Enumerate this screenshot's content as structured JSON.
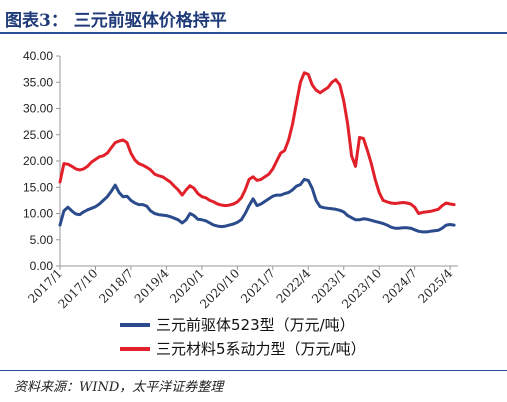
{
  "header": {
    "title": "图表3：  三元前驱体价格持平"
  },
  "footer": {
    "source": "资料来源：WIND，太平洋证券整理"
  },
  "colors": {
    "title": "#1f3a78",
    "series_blue": "#2b4b8c",
    "series_red": "#e2202a",
    "rule": "#2a4f9a"
  },
  "chart_data": {
    "type": "line",
    "title": "",
    "xlabel": "",
    "ylabel": "",
    "ylim": [
      0,
      40
    ],
    "yticks": [
      "0.00",
      "5.00",
      "10.00",
      "15.00",
      "20.00",
      "25.00",
      "30.00",
      "35.00",
      "40.00"
    ],
    "xlim": [
      "2017-01",
      "2025-06"
    ],
    "xticks": [
      "2017/1",
      "2017/10",
      "2018/7",
      "2019/4",
      "2020/1",
      "2020/10",
      "2021/7",
      "2022/4",
      "2023/1",
      "2023/10",
      "2024/7",
      "2025/4"
    ],
    "grid": false,
    "legend_position": "bottom",
    "series": [
      {
        "name": "三元前驱体523型（万元/吨）",
        "color": "#2b4b8c",
        "points": [
          [
            "2017-01",
            7.8
          ],
          [
            "2017-02",
            10.5
          ],
          [
            "2017-03",
            11.2
          ],
          [
            "2017-04",
            10.5
          ],
          [
            "2017-05",
            9.9
          ],
          [
            "2017-06",
            9.8
          ],
          [
            "2017-07",
            10.3
          ],
          [
            "2017-08",
            10.7
          ],
          [
            "2017-09",
            11.0
          ],
          [
            "2017-10",
            11.3
          ],
          [
            "2017-11",
            11.8
          ],
          [
            "2017-12",
            12.5
          ],
          [
            "2018-01",
            13.2
          ],
          [
            "2018-02",
            14.2
          ],
          [
            "2018-03",
            15.4
          ],
          [
            "2018-04",
            14.0
          ],
          [
            "2018-05",
            13.2
          ],
          [
            "2018-06",
            13.3
          ],
          [
            "2018-07",
            12.5
          ],
          [
            "2018-08",
            12.0
          ],
          [
            "2018-09",
            11.7
          ],
          [
            "2018-10",
            11.7
          ],
          [
            "2018-11",
            11.4
          ],
          [
            "2018-12",
            10.5
          ],
          [
            "2019-01",
            10.0
          ],
          [
            "2019-02",
            9.8
          ],
          [
            "2019-03",
            9.7
          ],
          [
            "2019-04",
            9.6
          ],
          [
            "2019-05",
            9.4
          ],
          [
            "2019-06",
            9.1
          ],
          [
            "2019-07",
            8.8
          ],
          [
            "2019-08",
            8.2
          ],
          [
            "2019-09",
            8.8
          ],
          [
            "2019-10",
            10.0
          ],
          [
            "2019-11",
            9.6
          ],
          [
            "2019-12",
            8.9
          ],
          [
            "2020-01",
            8.8
          ],
          [
            "2020-02",
            8.6
          ],
          [
            "2020-03",
            8.2
          ],
          [
            "2020-04",
            7.8
          ],
          [
            "2020-05",
            7.6
          ],
          [
            "2020-06",
            7.5
          ],
          [
            "2020-07",
            7.6
          ],
          [
            "2020-08",
            7.8
          ],
          [
            "2020-09",
            8.0
          ],
          [
            "2020-10",
            8.3
          ],
          [
            "2020-11",
            8.8
          ],
          [
            "2020-12",
            10.0
          ],
          [
            "2021-01",
            11.5
          ],
          [
            "2021-02",
            12.8
          ],
          [
            "2021-03",
            11.5
          ],
          [
            "2021-04",
            11.8
          ],
          [
            "2021-05",
            12.3
          ],
          [
            "2021-06",
            12.8
          ],
          [
            "2021-07",
            13.3
          ],
          [
            "2021-08",
            13.5
          ],
          [
            "2021-09",
            13.5
          ],
          [
            "2021-10",
            13.8
          ],
          [
            "2021-11",
            14.0
          ],
          [
            "2021-12",
            14.5
          ],
          [
            "2022-01",
            15.2
          ],
          [
            "2022-02",
            15.5
          ],
          [
            "2022-03",
            16.5
          ],
          [
            "2022-04",
            16.3
          ],
          [
            "2022-05",
            14.8
          ],
          [
            "2022-06",
            12.5
          ],
          [
            "2022-07",
            11.3
          ],
          [
            "2022-08",
            11.1
          ],
          [
            "2022-09",
            11.0
          ],
          [
            "2022-10",
            10.9
          ],
          [
            "2022-11",
            10.8
          ],
          [
            "2022-12",
            10.6
          ],
          [
            "2023-01",
            10.3
          ],
          [
            "2023-02",
            9.6
          ],
          [
            "2023-03",
            9.2
          ],
          [
            "2023-04",
            8.8
          ],
          [
            "2023-05",
            8.8
          ],
          [
            "2023-06",
            9.0
          ],
          [
            "2023-07",
            8.9
          ],
          [
            "2023-08",
            8.7
          ],
          [
            "2023-09",
            8.5
          ],
          [
            "2023-10",
            8.3
          ],
          [
            "2023-11",
            8.1
          ],
          [
            "2023-12",
            7.8
          ],
          [
            "2024-01",
            7.4
          ],
          [
            "2024-02",
            7.2
          ],
          [
            "2024-03",
            7.2
          ],
          [
            "2024-04",
            7.3
          ],
          [
            "2024-05",
            7.3
          ],
          [
            "2024-06",
            7.2
          ],
          [
            "2024-07",
            6.9
          ],
          [
            "2024-08",
            6.6
          ],
          [
            "2024-09",
            6.5
          ],
          [
            "2024-10",
            6.5
          ],
          [
            "2024-11",
            6.6
          ],
          [
            "2024-12",
            6.7
          ],
          [
            "2025-01",
            6.8
          ],
          [
            "2025-02",
            7.2
          ],
          [
            "2025-03",
            7.8
          ],
          [
            "2025-04",
            7.9
          ],
          [
            "2025-05",
            7.8
          ]
        ]
      },
      {
        "name": "三元材料5系动力型（万元/吨）",
        "color": "#e2202a",
        "points": [
          [
            "2017-01",
            16.0
          ],
          [
            "2017-02",
            19.5
          ],
          [
            "2017-03",
            19.4
          ],
          [
            "2017-04",
            19.0
          ],
          [
            "2017-05",
            18.5
          ],
          [
            "2017-06",
            18.3
          ],
          [
            "2017-07",
            18.5
          ],
          [
            "2017-08",
            19.0
          ],
          [
            "2017-09",
            19.8
          ],
          [
            "2017-10",
            20.3
          ],
          [
            "2017-11",
            20.8
          ],
          [
            "2017-12",
            21.0
          ],
          [
            "2018-01",
            21.5
          ],
          [
            "2018-02",
            22.5
          ],
          [
            "2018-03",
            23.5
          ],
          [
            "2018-04",
            23.8
          ],
          [
            "2018-05",
            24.0
          ],
          [
            "2018-06",
            23.5
          ],
          [
            "2018-07",
            21.5
          ],
          [
            "2018-08",
            20.2
          ],
          [
            "2018-09",
            19.5
          ],
          [
            "2018-10",
            19.2
          ],
          [
            "2018-11",
            18.8
          ],
          [
            "2018-12",
            18.3
          ],
          [
            "2019-01",
            17.5
          ],
          [
            "2019-02",
            17.2
          ],
          [
            "2019-03",
            17.0
          ],
          [
            "2019-04",
            16.5
          ],
          [
            "2019-05",
            16.0
          ],
          [
            "2019-06",
            15.2
          ],
          [
            "2019-07",
            14.5
          ],
          [
            "2019-08",
            13.5
          ],
          [
            "2019-09",
            14.5
          ],
          [
            "2019-10",
            15.3
          ],
          [
            "2019-11",
            14.8
          ],
          [
            "2019-12",
            13.8
          ],
          [
            "2020-01",
            13.2
          ],
          [
            "2020-02",
            13.0
          ],
          [
            "2020-03",
            12.5
          ],
          [
            "2020-04",
            12.2
          ],
          [
            "2020-05",
            11.8
          ],
          [
            "2020-06",
            11.6
          ],
          [
            "2020-07",
            11.5
          ],
          [
            "2020-08",
            11.6
          ],
          [
            "2020-09",
            11.8
          ],
          [
            "2020-10",
            12.2
          ],
          [
            "2020-11",
            13.0
          ],
          [
            "2020-12",
            14.5
          ],
          [
            "2021-01",
            16.5
          ],
          [
            "2021-02",
            17.0
          ],
          [
            "2021-03",
            16.3
          ],
          [
            "2021-04",
            16.5
          ],
          [
            "2021-05",
            17.0
          ],
          [
            "2021-06",
            17.5
          ],
          [
            "2021-07",
            18.5
          ],
          [
            "2021-08",
            20.0
          ],
          [
            "2021-09",
            21.5
          ],
          [
            "2021-10",
            22.0
          ],
          [
            "2021-11",
            24.0
          ],
          [
            "2021-12",
            27.0
          ],
          [
            "2022-01",
            31.0
          ],
          [
            "2022-02",
            35.0
          ],
          [
            "2022-03",
            36.8
          ],
          [
            "2022-04",
            36.5
          ],
          [
            "2022-05",
            34.5
          ],
          [
            "2022-06",
            33.5
          ],
          [
            "2022-07",
            33.0
          ],
          [
            "2022-08",
            33.5
          ],
          [
            "2022-09",
            34.0
          ],
          [
            "2022-10",
            35.0
          ],
          [
            "2022-11",
            35.5
          ],
          [
            "2022-12",
            34.5
          ],
          [
            "2023-01",
            31.5
          ],
          [
            "2023-02",
            27.0
          ],
          [
            "2023-03",
            21.0
          ],
          [
            "2023-04",
            19.0
          ],
          [
            "2023-05",
            24.5
          ],
          [
            "2023-06",
            24.3
          ],
          [
            "2023-07",
            22.0
          ],
          [
            "2023-08",
            19.5
          ],
          [
            "2023-09",
            16.5
          ],
          [
            "2023-10",
            14.0
          ],
          [
            "2023-11",
            12.5
          ],
          [
            "2023-12",
            12.2
          ],
          [
            "2024-01",
            12.0
          ],
          [
            "2024-02",
            11.9
          ],
          [
            "2024-03",
            12.0
          ],
          [
            "2024-04",
            12.1
          ],
          [
            "2024-05",
            12.0
          ],
          [
            "2024-06",
            11.8
          ],
          [
            "2024-07",
            11.2
          ],
          [
            "2024-08",
            10.0
          ],
          [
            "2024-09",
            10.2
          ],
          [
            "2024-10",
            10.3
          ],
          [
            "2024-11",
            10.4
          ],
          [
            "2024-12",
            10.6
          ],
          [
            "2025-01",
            10.8
          ],
          [
            "2025-02",
            11.5
          ],
          [
            "2025-03",
            12.0
          ],
          [
            "2025-04",
            11.8
          ],
          [
            "2025-05",
            11.7
          ]
        ]
      }
    ]
  }
}
